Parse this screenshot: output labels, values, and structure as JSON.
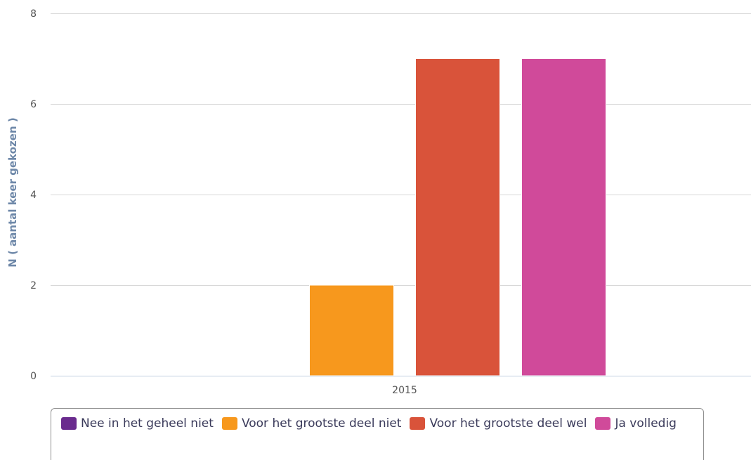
{
  "chart_data": {
    "type": "bar",
    "categories": [
      "2015"
    ],
    "series": [
      {
        "name": "Nee in het geheel niet",
        "values": [
          0
        ],
        "color": "#6a2b8e"
      },
      {
        "name": "Voor het grootste deel niet",
        "values": [
          2
        ],
        "color": "#f7981d"
      },
      {
        "name": "Voor het grootste deel wel",
        "values": [
          7
        ],
        "color": "#d9533a"
      },
      {
        "name": "Ja volledig",
        "values": [
          7
        ],
        "color": "#d04a9a"
      }
    ],
    "title": "",
    "xlabel": "",
    "ylabel": "N ( aantal keer gekozen )",
    "ylim": [
      0,
      8
    ],
    "yticks": [
      0,
      2,
      4,
      6,
      8
    ],
    "grid": true,
    "legend_position": "bottom"
  }
}
